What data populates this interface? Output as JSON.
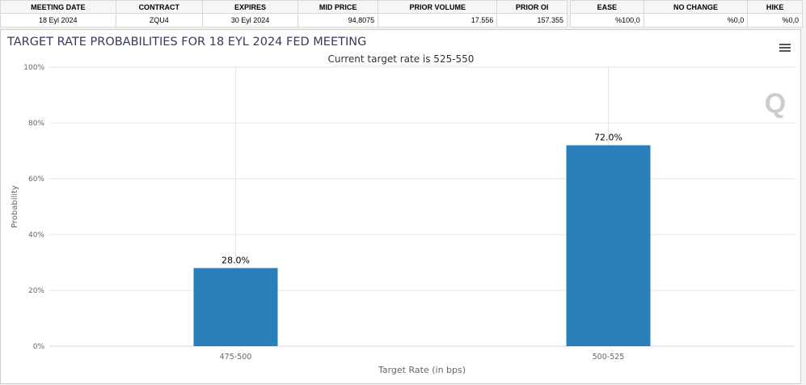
{
  "table1": {
    "headers": [
      "MEETING DATE",
      "CONTRACT",
      "EXPIRES",
      "MID PRICE",
      "PRIOR VOLUME",
      "PRIOR OI"
    ],
    "row": [
      "18 Eyl 2024",
      "ZQU4",
      "30 Eyl 2024",
      "94,8075",
      "17.556",
      "157.355"
    ]
  },
  "table2": {
    "headers": [
      "EASE",
      "NO CHANGE",
      "HIKE"
    ],
    "row": [
      "%100,0",
      "%0,0",
      "%0,0"
    ]
  },
  "panel": {
    "title": "TARGET RATE PROBABILITIES FOR 18 EYL 2024 FED MEETING",
    "menu_icon": "hamburger-icon",
    "watermark": "Q"
  },
  "chart_data": {
    "type": "bar",
    "subtitle": "Current target rate is 525-550",
    "categories": [
      "475-500",
      "500-525"
    ],
    "values": [
      28.0,
      72.0
    ],
    "data_labels": [
      "28.0%",
      "72.0%"
    ],
    "xlabel": "Target Rate (in bps)",
    "ylabel": "Probability",
    "ylim": [
      0,
      100
    ],
    "yticks": [
      "0%",
      "20%",
      "40%",
      "60%",
      "80%",
      "100%"
    ],
    "grid": true,
    "bar_color": "#2980b9"
  }
}
